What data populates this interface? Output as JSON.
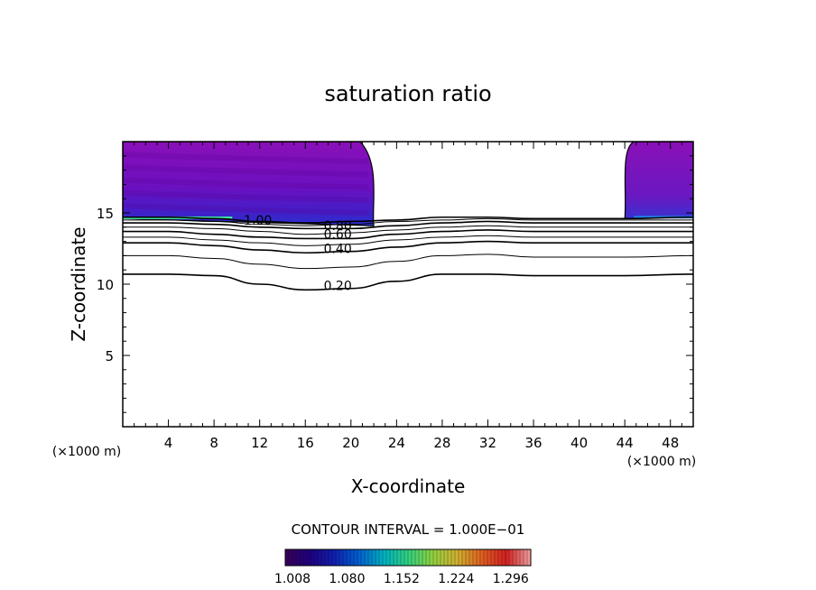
{
  "chart_data": {
    "type": "contour",
    "title": "saturation ratio",
    "xlabel": "X-coordinate",
    "ylabel": "Z-coordinate",
    "x_unit": "(×1000 m)",
    "y_unit": "(×1000 m)",
    "xlim": [
      0,
      50
    ],
    "ylim": [
      0,
      20
    ],
    "x_ticks": [
      4,
      8,
      12,
      16,
      20,
      24,
      28,
      32,
      36,
      40,
      44,
      48
    ],
    "y_ticks": [
      5,
      10,
      15
    ],
    "contour_interval_text": "CONTOUR INTERVAL = 1.000E−01",
    "colorbar": {
      "labels": [
        "1.008",
        "1.080",
        "1.152",
        "1.224",
        "1.296"
      ],
      "min": 1.008,
      "max": 1.332,
      "colors": [
        "#3a005a",
        "#1e0080",
        "#1020b0",
        "#0060d0",
        "#00b0c0",
        "#30d080",
        "#90d040",
        "#d0b030",
        "#e06020",
        "#d02020",
        "#f0a0a0"
      ]
    },
    "contour_lines": [
      {
        "level": "0.20",
        "z": [
          10.7,
          10.7,
          10.6,
          10.0,
          9.6,
          9.7,
          10.2,
          10.7,
          10.7,
          10.6,
          10.6,
          10.7
        ]
      },
      {
        "level": "0.30",
        "z": [
          12.0,
          12.0,
          11.8,
          11.4,
          11.1,
          11.2,
          11.6,
          12.0,
          12.1,
          11.9,
          11.9,
          12.0
        ]
      },
      {
        "level": "0.40",
        "z": [
          12.9,
          12.9,
          12.7,
          12.4,
          12.2,
          12.3,
          12.6,
          12.9,
          13.0,
          12.9,
          12.9,
          12.9
        ]
      },
      {
        "level": "0.50",
        "z": [
          13.3,
          13.3,
          13.1,
          12.9,
          12.7,
          12.8,
          13.1,
          13.3,
          13.4,
          13.3,
          13.3,
          13.3
        ]
      },
      {
        "level": "0.60",
        "z": [
          13.7,
          13.7,
          13.5,
          13.3,
          13.2,
          13.2,
          13.5,
          13.7,
          13.8,
          13.7,
          13.7,
          13.7
        ]
      },
      {
        "level": "0.70",
        "z": [
          14.0,
          14.0,
          13.9,
          13.7,
          13.5,
          13.6,
          13.8,
          14.0,
          14.1,
          14.0,
          14.0,
          14.0
        ]
      },
      {
        "level": "0.80",
        "z": [
          14.3,
          14.3,
          14.2,
          14.0,
          13.9,
          13.9,
          14.1,
          14.3,
          14.4,
          14.3,
          14.3,
          14.3
        ]
      },
      {
        "level": "0.90",
        "z": [
          14.5,
          14.5,
          14.4,
          14.2,
          14.1,
          14.2,
          14.4,
          14.5,
          14.6,
          14.5,
          14.5,
          14.5
        ]
      },
      {
        "level": "1.00",
        "z": [
          14.7,
          14.7,
          14.6,
          14.4,
          14.3,
          14.4,
          14.5,
          14.7,
          14.7,
          14.6,
          14.6,
          14.7
        ]
      }
    ],
    "contour_x": [
      0,
      4,
      8,
      12,
      16,
      20,
      24,
      28,
      32,
      36,
      44,
      50
    ],
    "labeled_levels": [
      "0.20",
      "0.40",
      "0.60",
      "0.80",
      "1.00"
    ],
    "supersat_regions": [
      {
        "x_edge": [
          0,
          22.0
        ],
        "z_base": 14.1,
        "z_top": 20
      },
      {
        "x_edge": [
          44.0,
          50
        ],
        "z_base": 14.6,
        "z_top": 20
      }
    ]
  }
}
